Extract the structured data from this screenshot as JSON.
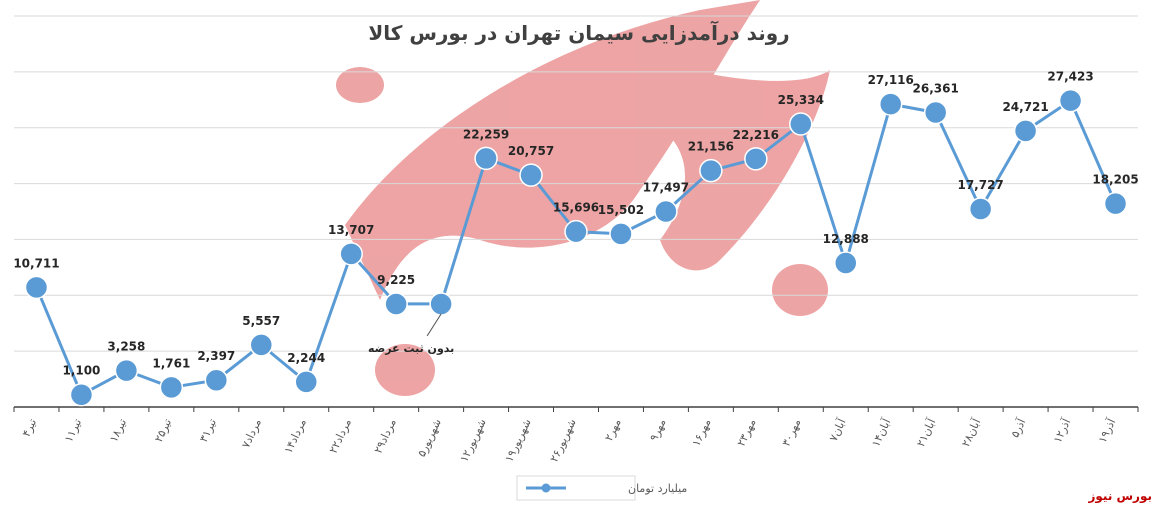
{
  "chart_data": {
    "type": "line",
    "title": "روند درآمدزایی سیمان تهران در بورس کالا",
    "categories": [
      "۴تیر",
      "۱۱تیر",
      "۱۸تیر",
      "۲۵تیر",
      "۳۱تیر",
      "۷مرداد",
      "۱۴مرداد",
      "۲۲مرداد",
      "۲۹مرداد",
      "۵شهریور",
      "۱۲شهریور",
      "۱۹شهریور",
      "۲۶شهریور",
      "۲مهر",
      "۹مهر",
      "۱۶مهر",
      "۲۳مهر",
      "۳۰مهر",
      "۷آبان",
      "۱۴آبان",
      "۲۱آبان",
      "۲۸آبان",
      "۵آذر",
      "۱۲آذر",
      "۱۹آذر"
    ],
    "series": [
      {
        "name": "میلیارد تومان",
        "values": [
          10711,
          1100,
          3258,
          1761,
          2397,
          5557,
          2244,
          13707,
          9225,
          9225,
          22259,
          20757,
          15696,
          15502,
          17497,
          21156,
          22216,
          25334,
          12888,
          27116,
          26361,
          17727,
          24721,
          27423,
          18205
        ],
        "labels": [
          "10,711",
          "1,100",
          "3,258",
          "1,761",
          "2,397",
          "5,557",
          "2,244",
          "13,707",
          "9,225",
          "",
          "22,259",
          "20,757",
          "15,696",
          "15,502",
          "17,497",
          "21,156",
          "22,216",
          "25,334",
          "12,888",
          "27,116",
          "26,361",
          "17,727",
          "24,721",
          "27,423",
          "18,205"
        ]
      }
    ],
    "annotation": {
      "text": "بدون ثبت عرضه",
      "category_index": 9
    },
    "ylim": [
      0,
      35000
    ],
    "grid": true,
    "legend": "bottom-center",
    "colors": {
      "series": "#5b9bd5",
      "grid": "#d9d9d9",
      "axis": "#404040"
    }
  },
  "brand": {
    "label": "بورس نیوز",
    "color": "#c00000"
  }
}
